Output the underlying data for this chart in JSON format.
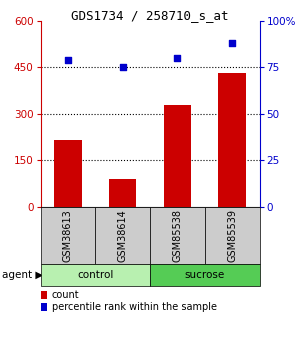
{
  "title": "GDS1734 / 258710_s_at",
  "samples": [
    "GSM38613",
    "GSM38614",
    "GSM85538",
    "GSM85539"
  ],
  "counts": [
    215,
    90,
    330,
    430
  ],
  "percentiles": [
    79,
    75,
    80,
    88
  ],
  "groups": [
    {
      "label": "control",
      "indices": [
        0,
        1
      ],
      "color": "#b8f0b0"
    },
    {
      "label": "sucrose",
      "indices": [
        2,
        3
      ],
      "color": "#55cc55"
    }
  ],
  "bar_color": "#cc0000",
  "dot_color": "#0000cc",
  "left_yticks": [
    0,
    150,
    300,
    450,
    600
  ],
  "right_yticks": [
    0,
    25,
    50,
    75,
    100
  ],
  "right_yticklabels": [
    "0",
    "25",
    "50",
    "75",
    "100%"
  ],
  "left_ylim": [
    0,
    600
  ],
  "right_ylim": [
    0,
    100
  ],
  "grid_values": [
    150,
    300,
    450
  ],
  "bar_width": 0.5,
  "sample_box_color": "#cccccc",
  "legend_count_label": "count",
  "legend_pct_label": "percentile rank within the sample",
  "title_fontsize": 9,
  "tick_fontsize": 7.5,
  "label_fontsize": 7,
  "group_fontsize": 7.5,
  "agent_fontsize": 7.5,
  "legend_fontsize": 7
}
